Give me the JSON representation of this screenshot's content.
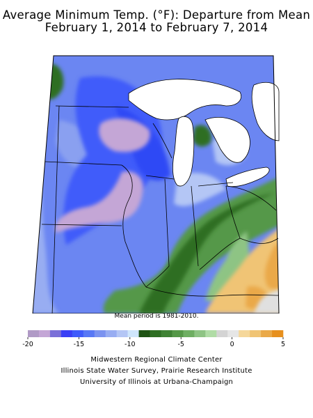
{
  "title_line1": "Average Minimum Temp. (°F): Departure from Mean",
  "title_line2": "February 1, 2014 to February 7, 2014",
  "note": "Mean period is 1981-2010.",
  "legend": {
    "tick_labels": [
      "-20",
      "-15",
      "-10",
      "-5",
      "0",
      "5"
    ],
    "colors": [
      "#b09ac6",
      "#c4a6d6",
      "#7a6fd8",
      "#3a3ff5",
      "#3f5bfa",
      "#5878f5",
      "#7b93f0",
      "#98adf2",
      "#b4c6f5",
      "#cfe6fc",
      "#1f5314",
      "#2e6e23",
      "#3f8234",
      "#559848",
      "#6eae62",
      "#8ec484",
      "#b0dca6",
      "#d4d4d4",
      "#e6e6e6",
      "#f5d79a",
      "#f0c474",
      "#eaa948",
      "#e7901e"
    ]
  },
  "credits": {
    "line1": "Midwestern Regional Climate Center",
    "line2": "Illinois State Water Survey, Prairie Research Institute",
    "line3": "University of Illinois at Urbana-Champaign"
  }
}
